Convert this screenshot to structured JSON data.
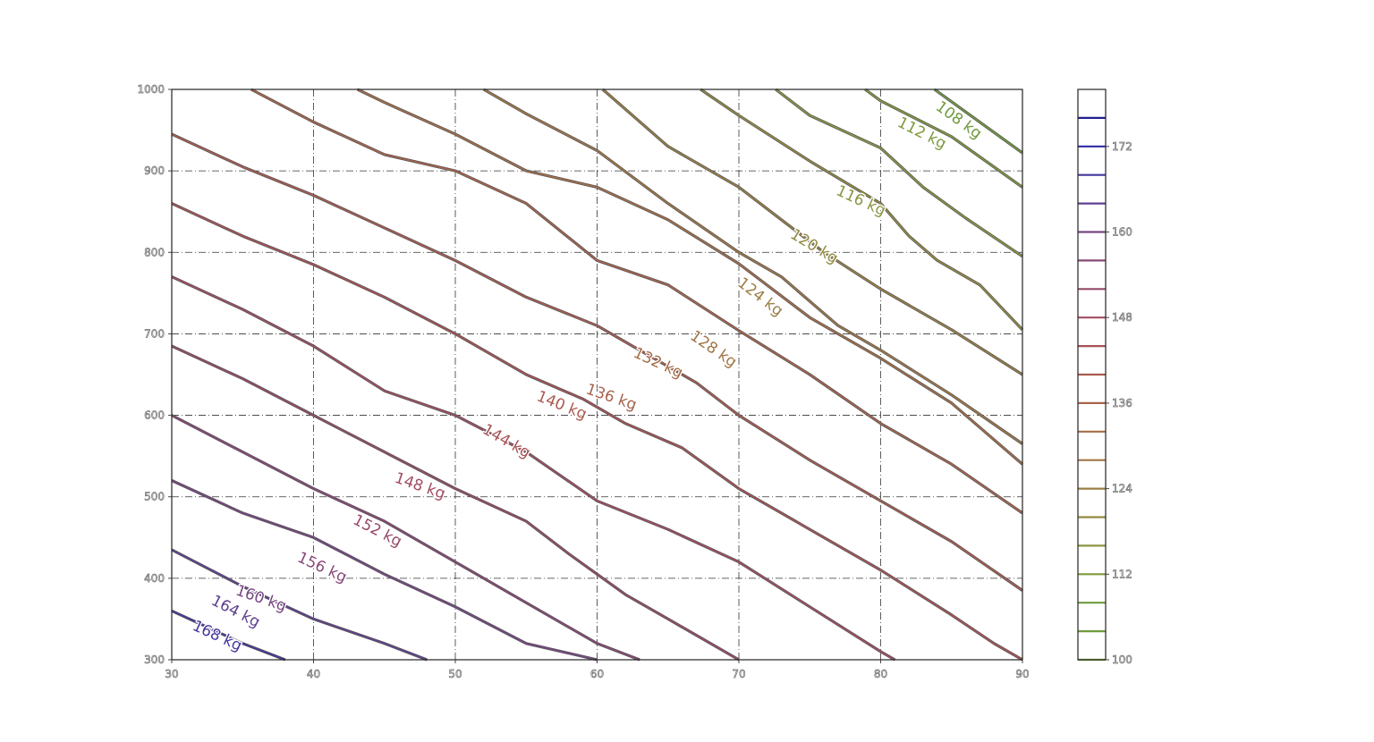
{
  "chart_data": {
    "type": "contour",
    "title": "",
    "xlabel": "",
    "ylabel": "",
    "xlim": [
      30,
      90
    ],
    "ylim": [
      300,
      1000
    ],
    "x_ticks": [
      30,
      40,
      50,
      60,
      70,
      80,
      90
    ],
    "y_ticks": [
      300,
      400,
      500,
      600,
      700,
      800,
      900,
      1000
    ],
    "grid": true,
    "grid_style": "dash-dot",
    "unit": "kg",
    "levels": [
      {
        "value": 108,
        "label": "108 kg",
        "color": "#6f9a3c",
        "points": [
          [
            83.8,
            1000
          ],
          [
            90,
            922
          ]
        ],
        "label_at": [
          85.5,
          962
        ]
      },
      {
        "value": 112,
        "label": "112 kg",
        "color": "#7f9a3c",
        "points": [
          [
            78.9,
            1000
          ],
          [
            80,
            986
          ],
          [
            85,
            942
          ],
          [
            90,
            880
          ]
        ],
        "label_at": [
          82.9,
          946
        ]
      },
      {
        "value": 116,
        "label": "116 kg",
        "color": "#8a9440",
        "points": [
          [
            72.6,
            1000
          ],
          [
            75,
            968
          ],
          [
            80,
            928
          ],
          [
            83,
            880
          ],
          [
            86,
            842
          ],
          [
            90,
            795
          ]
        ],
        "label_at": [
          78.6,
          863
        ]
      },
      {
        "value": 120,
        "label": "120 kg",
        "color": "#928a42",
        "points": [
          [
            67.3,
            1000
          ],
          [
            70,
            968
          ],
          [
            75,
            912
          ],
          [
            80,
            860
          ],
          [
            82,
            820
          ],
          [
            84,
            790
          ],
          [
            87,
            760
          ],
          [
            90,
            705
          ]
        ],
        "label_at": [
          75.3,
          807
        ]
      },
      {
        "value": 124,
        "label": "124 kg",
        "color": "#9a7f44",
        "points": [
          [
            60.4,
            1000
          ],
          [
            65,
            930
          ],
          [
            70,
            880
          ],
          [
            73,
            840
          ],
          [
            76,
            800
          ],
          [
            80,
            755
          ],
          [
            85,
            705
          ],
          [
            90,
            650
          ]
        ],
        "label_at": [
          71.5,
          745
        ]
      },
      {
        "value": 128,
        "label": "128 kg",
        "color": "#a07646",
        "points": [
          [
            52,
            1000
          ],
          [
            55,
            970
          ],
          [
            60,
            925
          ],
          [
            65,
            860
          ],
          [
            70,
            800
          ],
          [
            73,
            770
          ],
          [
            77,
            710
          ],
          [
            80,
            680
          ],
          [
            85,
            625
          ],
          [
            90,
            565
          ]
        ],
        "label_at": [
          68.2,
          681
        ]
      },
      {
        "value": 132,
        "label": "132 kg",
        "color": "#a56d48",
        "points": [
          [
            43.1,
            1000
          ],
          [
            45,
            984
          ],
          [
            50,
            945
          ],
          [
            55,
            900
          ],
          [
            60,
            880
          ],
          [
            65,
            840
          ],
          [
            70,
            786
          ],
          [
            75,
            720
          ],
          [
            80,
            670
          ],
          [
            85,
            615
          ],
          [
            90,
            540
          ]
        ],
        "label_at": [
          64.3,
          664
        ]
      },
      {
        "value": 136,
        "label": "136 kg",
        "color": "#a8634c",
        "points": [
          [
            35.6,
            1000
          ],
          [
            40,
            960
          ],
          [
            45,
            920
          ],
          [
            50,
            900
          ],
          [
            55,
            860
          ],
          [
            60,
            790
          ],
          [
            65,
            760
          ],
          [
            70,
            704
          ],
          [
            75,
            650
          ],
          [
            80,
            590
          ],
          [
            85,
            540
          ],
          [
            90,
            480
          ]
        ],
        "label_at": [
          61,
          622
        ]
      },
      {
        "value": 140,
        "label": "140 kg",
        "color": "#aa5a50",
        "points": [
          [
            30,
            945
          ],
          [
            35,
            905
          ],
          [
            40,
            870
          ],
          [
            45,
            830
          ],
          [
            50,
            790
          ],
          [
            55,
            745
          ],
          [
            60,
            710
          ],
          [
            63,
            680
          ],
          [
            67,
            640
          ],
          [
            70,
            600
          ],
          [
            75,
            545
          ],
          [
            80,
            495
          ],
          [
            85,
            445
          ],
          [
            90,
            385
          ]
        ],
        "label_at": [
          57.5,
          612
        ]
      },
      {
        "value": 144,
        "label": "144 kg",
        "color": "#a85256",
        "points": [
          [
            30,
            860
          ],
          [
            35,
            820
          ],
          [
            40,
            785
          ],
          [
            45,
            745
          ],
          [
            50,
            700
          ],
          [
            55,
            650
          ],
          [
            59,
            620
          ],
          [
            62,
            590
          ],
          [
            66,
            560
          ],
          [
            70,
            510
          ],
          [
            75,
            460
          ],
          [
            80,
            410
          ],
          [
            85,
            355
          ],
          [
            88,
            320
          ],
          [
            90,
            300
          ]
        ],
        "label_at": [
          53.6,
          568
        ]
      },
      {
        "value": 148,
        "label": "148 kg",
        "color": "#a14d60",
        "points": [
          [
            30,
            770
          ],
          [
            35,
            730
          ],
          [
            40,
            685
          ],
          [
            45,
            630
          ],
          [
            50,
            600
          ],
          [
            55,
            555
          ],
          [
            60,
            495
          ],
          [
            65,
            460
          ],
          [
            70,
            420
          ],
          [
            75,
            365
          ],
          [
            80,
            310
          ],
          [
            81,
            300
          ]
        ],
        "label_at": [
          47.5,
          513
        ]
      },
      {
        "value": 152,
        "label": "152 kg",
        "color": "#964a6a",
        "points": [
          [
            30,
            685
          ],
          [
            35,
            645
          ],
          [
            40,
            600
          ],
          [
            45,
            555
          ],
          [
            50,
            510
          ],
          [
            55,
            470
          ],
          [
            58,
            430
          ],
          [
            62,
            380
          ],
          [
            65,
            350
          ],
          [
            70,
            300
          ]
        ],
        "label_at": [
          44.5,
          458
        ]
      },
      {
        "value": 156,
        "label": "156 kg",
        "color": "#884876",
        "points": [
          [
            30,
            600
          ],
          [
            35,
            555
          ],
          [
            40,
            510
          ],
          [
            45,
            470
          ],
          [
            50,
            420
          ],
          [
            55,
            370
          ],
          [
            60,
            320
          ],
          [
            63,
            300
          ]
        ],
        "label_at": [
          40.6,
          413
        ]
      },
      {
        "value": 160,
        "label": "160 kg",
        "color": "#774682",
        "points": [
          [
            30,
            520
          ],
          [
            35,
            480
          ],
          [
            40,
            450
          ],
          [
            45,
            405
          ],
          [
            50,
            365
          ],
          [
            55,
            320
          ],
          [
            60,
            300
          ]
        ],
        "label_at": [
          36.3,
          375
        ]
      },
      {
        "value": 164,
        "label": "164 kg",
        "color": "#5f4090",
        "points": [
          [
            30,
            435
          ],
          [
            35,
            390
          ],
          [
            40,
            350
          ],
          [
            45,
            320
          ],
          [
            48,
            300
          ]
        ],
        "label_at": [
          34.5,
          359
        ]
      },
      {
        "value": 168,
        "label": "168 kg",
        "color": "#44379e",
        "points": [
          [
            30,
            360
          ],
          [
            35,
            320
          ],
          [
            38,
            300
          ]
        ],
        "label_at": [
          33.2,
          329
        ]
      }
    ],
    "colorbar": {
      "min": 100,
      "max": 180,
      "ticks": [
        100,
        112,
        124,
        136,
        148,
        160,
        172
      ],
      "line_values": [
        100,
        104,
        108,
        112,
        116,
        120,
        124,
        128,
        132,
        136,
        140,
        144,
        148,
        152,
        156,
        160,
        164,
        168,
        172,
        176
      ],
      "line_colors": [
        "#7fa83f",
        "#6f9a3c",
        "#6f9a3c",
        "#7f9a3c",
        "#8a9440",
        "#928a42",
        "#9a7f44",
        "#a07646",
        "#a56d48",
        "#a8634c",
        "#aa5a50",
        "#a85256",
        "#a14d60",
        "#964a6a",
        "#884876",
        "#774682",
        "#5f4090",
        "#44379e",
        "#2f2aa0",
        "#1f1f8f"
      ]
    }
  }
}
